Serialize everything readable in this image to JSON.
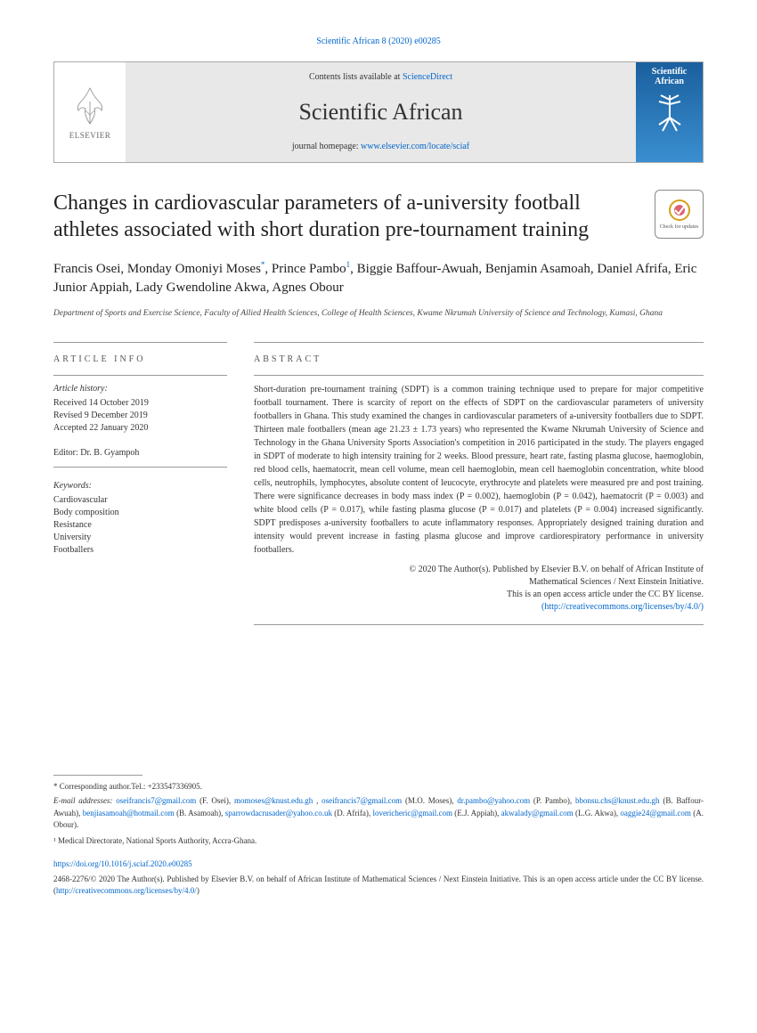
{
  "citation": "Scientific African 8 (2020) e00285",
  "header": {
    "contents_prefix": "Contents lists available at ",
    "contents_link": "ScienceDirect",
    "journal": "Scientific African",
    "homepage_prefix": "journal homepage: ",
    "homepage_link": "www.elsevier.com/locate/sciaf",
    "elsevier": "ELSEVIER",
    "cover_title": "Scientific African"
  },
  "title": "Changes in cardiovascular parameters of a-university football athletes associated with short duration pre-tournament training",
  "check_updates": "Check for updates",
  "authors": "Francis Osei, Monday Omoniyi Moses*, Prince Pambo¹, Biggie Baffour-Awuah, Benjamin Asamoah, Daniel Afrifa, Eric Junior Appiah, Lady Gwendoline Akwa, Agnes Obour",
  "affiliation": "Department of Sports and Exercise Science, Faculty of Allied Health Sciences, College of Health Sciences, Kwame Nkrumah University of Science and Technology, Kumasi, Ghana",
  "article_info_heading": "ARTICLE INFO",
  "history_label": "Article history:",
  "history": [
    "Received 14 October 2019",
    "Revised 9 December 2019",
    "Accepted 22 January 2020"
  ],
  "editor": "Editor: Dr. B. Gyampoh",
  "keywords_label": "Keywords:",
  "keywords": [
    "Cardiovascular",
    "Body composition",
    "Resistance",
    "University",
    "Footballers"
  ],
  "abstract_heading": "ABSTRACT",
  "abstract": "Short-duration pre-tournament training (SDPT) is a common training technique used to prepare for major competitive football tournament. There is scarcity of report on the effects of SDPT on the cardiovascular parameters of university footballers in Ghana. This study examined the changes in cardiovascular parameters of a-university footballers due to SDPT. Thirteen male footballers (mean age 21.23 ± 1.73 years) who represented the Kwame Nkrumah University of Science and Technology in the Ghana University Sports Association's competition in 2016 participated in the study. The players engaged in SDPT of moderate to high intensity training for 2 weeks. Blood pressure, heart rate, fasting plasma glucose, haemoglobin, red blood cells, haematocrit, mean cell volume, mean cell haemoglobin, mean cell haemoglobin concentration, white blood cells, neutrophils, lymphocytes, absolute content of leucocyte, erythrocyte and platelets were measured pre and post training. There were significance decreases in body mass index (P = 0.002), haemoglobin (P = 0.042), haematocrit (P = 0.003) and white blood cells (P = 0.017), while fasting plasma glucose (P = 0.017) and platelets (P = 0.004) increased significantly. SDPT predisposes a-university footballers to acute inflammatory responses. Appropriately designed training duration and intensity would prevent increase in fasting plasma glucose and improve cardiorespiratory performance in university footballers.",
  "copyright": {
    "line1": "© 2020 The Author(s). Published by Elsevier B.V. on behalf of African Institute of",
    "line2": "Mathematical Sciences / Next Einstein Initiative.",
    "line3": "This is an open access article under the CC BY license.",
    "link": "(http://creativecommons.org/licenses/by/4.0/)"
  },
  "footer": {
    "corresp": "* Corresponding author.Tel.: +233547336905.",
    "email_label": "E-mail addresses:",
    "emails": [
      {
        "email": "oseifrancis7@gmail.com",
        "name": "(F. Osei)"
      },
      {
        "email": "momoses@knust.edu.gh",
        "name": ""
      },
      {
        "email": "oseifrancis7@gmail.com",
        "name": "(M.O. Moses)"
      },
      {
        "email": "dr.pambo@yahoo.com",
        "name": "(P. Pambo)"
      },
      {
        "email": "bbonsu.chs@knust.edu.gh",
        "name": "(B. Baffour-Awuah)"
      },
      {
        "email": "benjiasamoah@hotmail.com",
        "name": "(B. Asamoah)"
      },
      {
        "email": "sparrowdacrusader@yahoo.co.uk",
        "name": "(D. Afrifa)"
      },
      {
        "email": "lovericheric@gmail.com",
        "name": "(E.J. Appiah)"
      },
      {
        "email": "akwalady@gmail.com",
        "name": "(L.G. Akwa)"
      },
      {
        "email": "oaggie24@gmail.com",
        "name": "(A. Obour)."
      }
    ],
    "medical_note": "¹ Medical Directorate, National Sports Authority, Accra-Ghana.",
    "doi": "https://doi.org/10.1016/j.sciaf.2020.e00285",
    "issn": "2468-2276/© 2020 The Author(s). Published by Elsevier B.V. on behalf of African Institute of Mathematical Sciences / Next Einstein Initiative. This is an open access article under the CC BY license. (",
    "issn_link": "http://creativecommons.org/licenses/by/4.0/",
    "issn_close": ")"
  }
}
